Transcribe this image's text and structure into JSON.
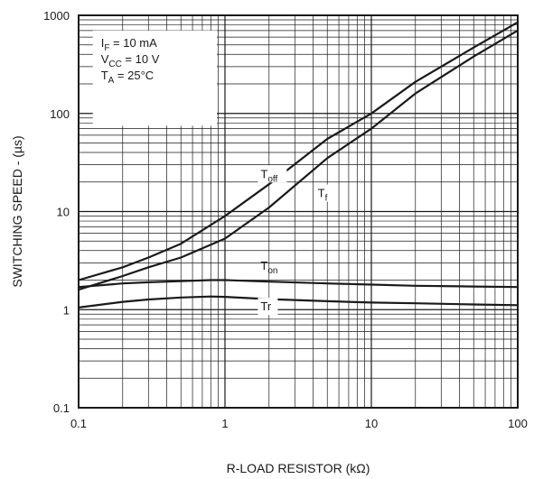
{
  "chart_data": {
    "type": "line",
    "xlabel": "R-LOAD RESISTOR (kΩ)",
    "ylabel": "SWITCHING SPEED - (µs)",
    "x_scale": "log",
    "y_scale": "log",
    "xlim": [
      0.1,
      100
    ],
    "ylim": [
      0.1,
      1000
    ],
    "grid": true,
    "x_ticks": [
      {
        "value": 0.1,
        "label": "0.1"
      },
      {
        "value": 1,
        "label": "1"
      },
      {
        "value": 10,
        "label": "10"
      },
      {
        "value": 100,
        "label": "100"
      }
    ],
    "y_ticks": [
      {
        "value": 0.1,
        "label": "0.1"
      },
      {
        "value": 1,
        "label": "1"
      },
      {
        "value": 10,
        "label": "10"
      },
      {
        "value": 100,
        "label": "100"
      },
      {
        "value": 1000,
        "label": "1000"
      }
    ],
    "conditions": [
      {
        "main": "I",
        "sub": "F",
        "rest": " = 10 mA"
      },
      {
        "main": "V",
        "sub": "CC",
        "rest": " = 10 V"
      },
      {
        "main": "T",
        "sub": "A",
        "rest": " = 25°C"
      }
    ],
    "series": [
      {
        "name": "Toff",
        "label_main": "T",
        "label_sub": "off",
        "x": [
          0.1,
          0.2,
          0.3,
          0.5,
          1,
          2,
          5,
          10,
          20,
          50,
          100
        ],
        "y": [
          2.0,
          2.7,
          3.4,
          4.7,
          9,
          19,
          55,
          100,
          210,
          470,
          850
        ]
      },
      {
        "name": "Tf",
        "label_main": "T",
        "label_sub": "f",
        "x": [
          0.1,
          0.2,
          0.3,
          0.5,
          1,
          2,
          5,
          10,
          20,
          50,
          100
        ],
        "y": [
          1.6,
          2.2,
          2.7,
          3.4,
          5.3,
          11,
          35,
          70,
          160,
          380,
          700
        ]
      },
      {
        "name": "Ton",
        "label_main": "T",
        "label_sub": "on",
        "x": [
          0.1,
          0.2,
          0.3,
          0.5,
          0.8,
          1,
          2,
          5,
          10,
          20,
          50,
          100
        ],
        "y": [
          1.7,
          1.85,
          1.9,
          1.95,
          2.0,
          2.0,
          1.93,
          1.85,
          1.8,
          1.75,
          1.72,
          1.7
        ]
      },
      {
        "name": "Tr",
        "label_main": "Tr",
        "label_sub": "",
        "x": [
          0.1,
          0.2,
          0.3,
          0.5,
          0.8,
          1,
          2,
          5,
          10,
          20,
          50,
          100
        ],
        "y": [
          1.05,
          1.2,
          1.27,
          1.33,
          1.36,
          1.35,
          1.28,
          1.22,
          1.18,
          1.16,
          1.13,
          1.11
        ]
      }
    ],
    "colors": {
      "line": "#1a1a1a",
      "grid": "#1a1a1a",
      "background": "#ffffff"
    }
  }
}
